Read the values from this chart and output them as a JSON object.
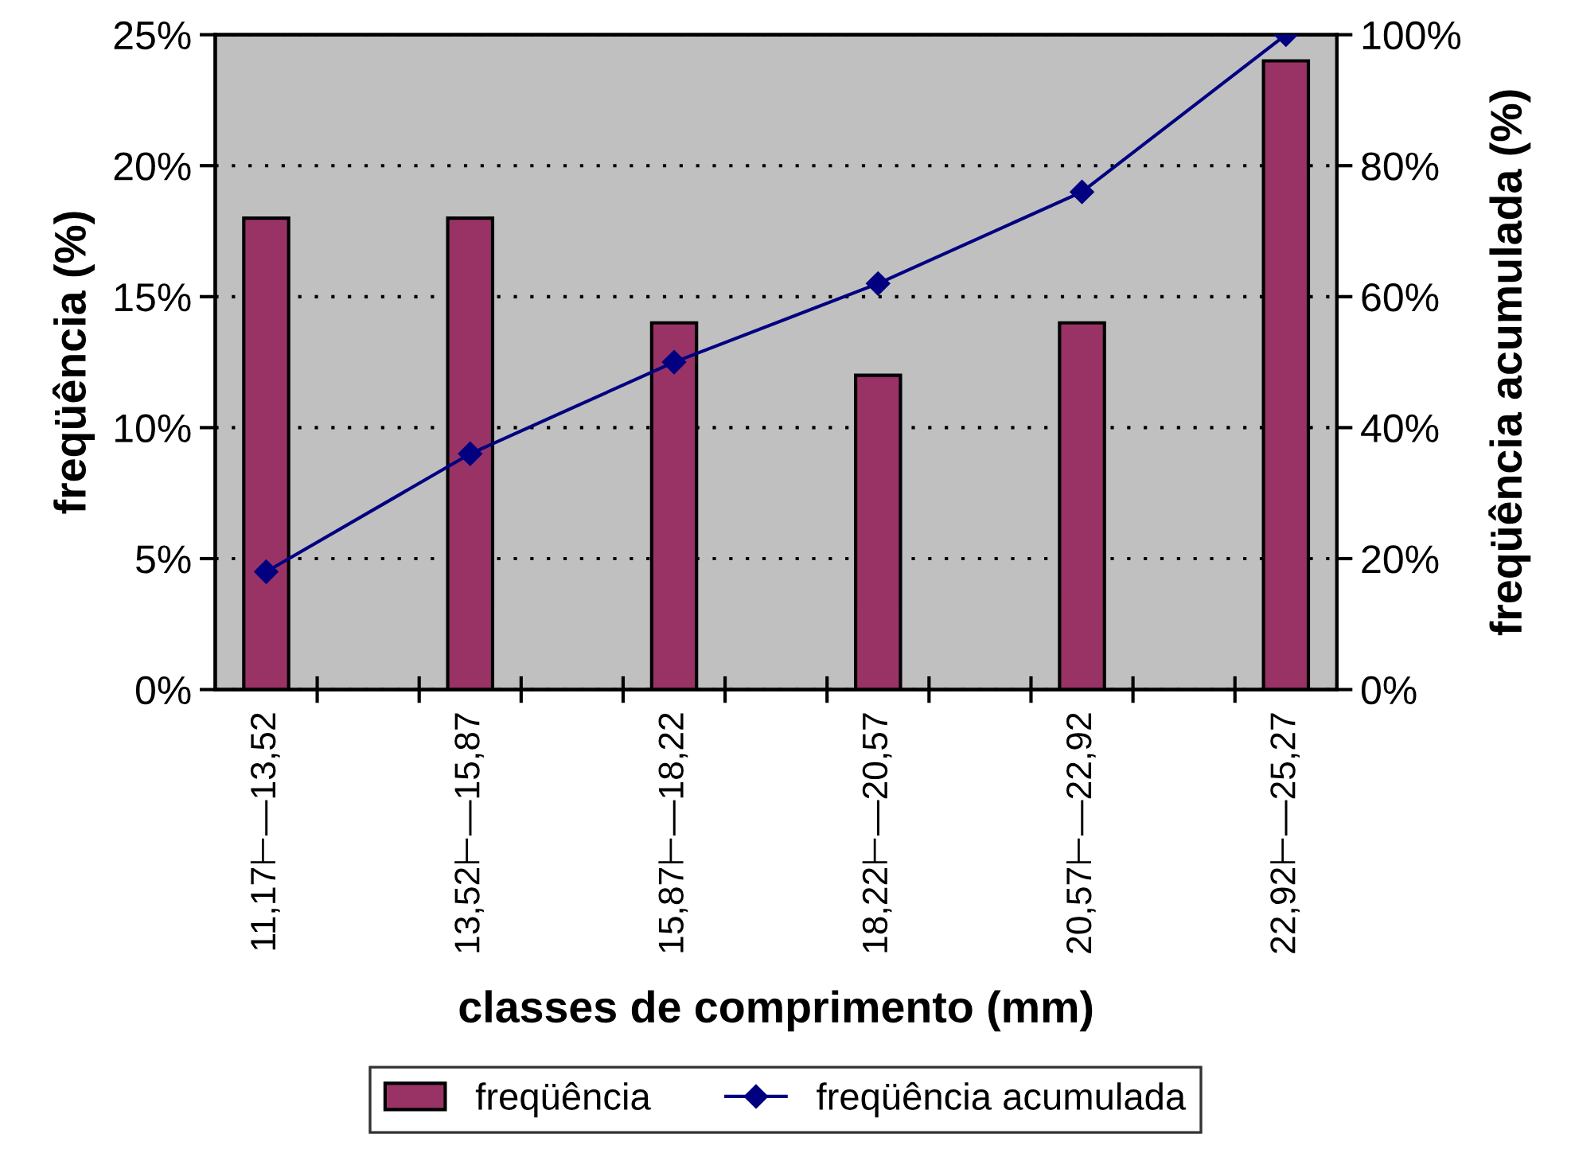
{
  "chart_data": {
    "type": "bar",
    "xlabel": "classes de comprimento (mm)",
    "ylabel": "freqüência (%)",
    "y2label": "freqüência acumulada (%)",
    "categories": [
      "11,17⊢—13,52",
      null,
      "13,52⊢—15,87",
      null,
      "15,87⊢—18,22",
      null,
      "18,22⊢—20,57",
      null,
      "20,57⊢—22,92",
      null,
      "22,92⊢—25,27"
    ],
    "series": [
      {
        "name": "freqüência",
        "color": "#993366",
        "values": [
          18,
          null,
          18,
          null,
          14,
          null,
          12,
          null,
          14,
          null,
          24
        ]
      },
      {
        "name": "freqüência acumulada",
        "type": "line",
        "axis": "y2",
        "color": "#000080",
        "marker": "diamond",
        "values": [
          18,
          null,
          36,
          null,
          50,
          null,
          62,
          null,
          76,
          null,
          100
        ]
      }
    ],
    "ylim": [
      0,
      25
    ],
    "yticks": [
      {
        "value": 0,
        "label": "0%"
      },
      {
        "value": 5,
        "label": "5%"
      },
      {
        "value": 10,
        "label": "10%"
      },
      {
        "value": 15,
        "label": "15%"
      },
      {
        "value": 20,
        "label": "20%"
      },
      {
        "value": 25,
        "label": "25%"
      }
    ],
    "y2lim": [
      0,
      100
    ],
    "y2ticks": [
      {
        "value": 0,
        "label": "0%"
      },
      {
        "value": 20,
        "label": "20%"
      },
      {
        "value": 40,
        "label": "40%"
      },
      {
        "value": 60,
        "label": "60%"
      },
      {
        "value": 80,
        "label": "80%"
      },
      {
        "value": 100,
        "label": "100%"
      }
    ],
    "grid": "y",
    "legend": "bottom"
  }
}
